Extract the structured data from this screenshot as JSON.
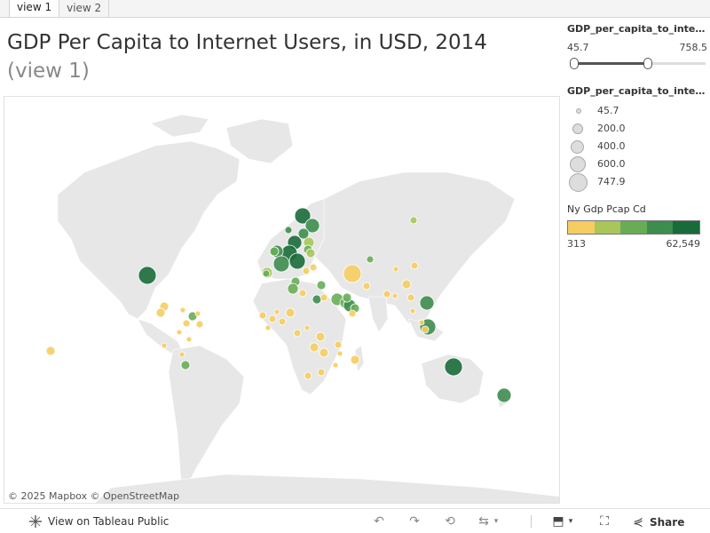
{
  "tabs": [
    "view 1",
    "view 2"
  ],
  "title": {
    "main": "GDP Per Capita to Internet Users, in USD, 2014",
    "view": "(view 1)"
  },
  "filter": {
    "name": "GDP_per_capita_to_inter...",
    "min": "45.7",
    "max": "758.5"
  },
  "size_legend": {
    "name": "GDP_per_capita_to_inter...",
    "items": [
      "45.7",
      "200.0",
      "400.0",
      "600.0",
      "747.9"
    ]
  },
  "color_legend": {
    "name": "Ny Gdp Pcap Cd",
    "min": "313",
    "max": "62,549",
    "colors": [
      "#f5cd60",
      "#a9c65a",
      "#68ad56",
      "#3d8d4e",
      "#1a6b3a"
    ]
  },
  "attribution": "© 2025 Mapbox  © OpenStreetMap",
  "toolbar": {
    "view_label": "View on Tableau Public",
    "share_label": "Share"
  }
}
